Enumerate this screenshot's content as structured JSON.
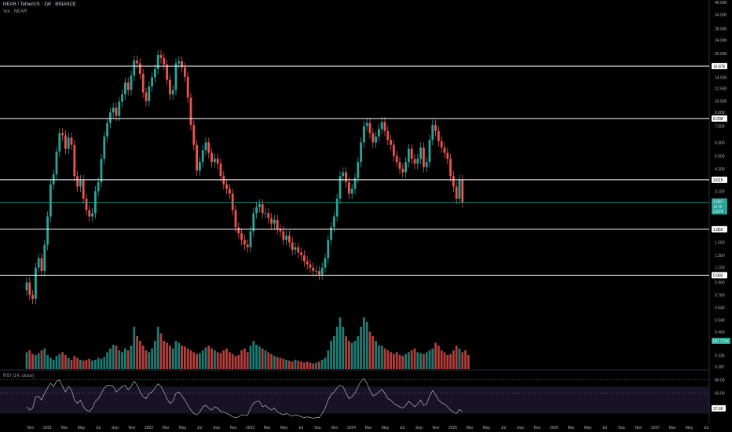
{
  "header": {
    "title": "NEAR / TetherUS · 1W · BINANCE",
    "vol_label": "Vol · NEAR"
  },
  "rsi_label": "RSI (14, close)",
  "colors": {
    "up": "#26a69a",
    "down": "#ef5350",
    "rsi": "#b2b5be",
    "price_line": "#26a69a",
    "hline": "#ffffff",
    "rsi_band": "#2a1e3f",
    "badge_current": "#26a69a",
    "badge_level": "#ffffff"
  },
  "chart_data": [
    {
      "type": "candlestick",
      "title": "NEAR / TetherUS · 1W · BINANCE",
      "scale": "log",
      "y_axis_ticks": [
        "40.000",
        "34.000",
        "28.000",
        "24.000",
        "20.000",
        "14.500",
        "12.500",
        "10.500",
        "9.000",
        "7.500",
        "6.000",
        "5.000",
        "4.200",
        "3.100",
        "2.500",
        "1.550",
        "1.300",
        "1.100",
        "0.900",
        "0.760",
        "0.640",
        "0.540",
        "0.460",
        "0.335",
        "0.287"
      ],
      "y_tick_values": [
        40,
        34,
        28,
        24,
        20,
        14.5,
        12.5,
        10.5,
        9,
        7.5,
        6,
        5,
        4.2,
        3.1,
        2.5,
        1.55,
        1.3,
        1.1,
        0.9,
        0.76,
        0.64,
        0.54,
        0.46,
        0.335,
        0.287
      ],
      "x_axis_ticks": [
        "Nov",
        "2021",
        "Mar",
        "May",
        "Jul",
        "Sep",
        "Nov",
        "2022",
        "Mar",
        "May",
        "Jul",
        "Sep",
        "Nov",
        "2023",
        "Mar",
        "May",
        "Jul",
        "Sep",
        "Nov",
        "2024",
        "Mar",
        "May",
        "Jul",
        "Sep",
        "Nov",
        "2025",
        "Mar",
        "May",
        "Jul",
        "Sep",
        "Nov",
        "2026",
        "Mar",
        "May",
        "Jul",
        "Sep",
        "Nov",
        "2027",
        "Mar",
        "May",
        "Jul"
      ],
      "x_range": [
        "2020-10",
        "2027-08"
      ],
      "horizontal_levels": [
        {
          "label": "16.876",
          "value": 16.876
        },
        {
          "label": "8.298",
          "value": 8.298
        },
        {
          "label": "3.615",
          "value": 3.615
        },
        {
          "label": "1.850",
          "value": 1.85
        },
        {
          "label": "0.993",
          "value": 0.993
        }
      ],
      "current_price": {
        "label": "2.667",
        "value": 2.667,
        "countdown": "1d 0h"
      },
      "prev_level_badge": "2.574",
      "volume_badge": "187.723K",
      "closes": [
        0.9,
        0.76,
        0.72,
        1.1,
        1.25,
        1.05,
        1.5,
        2.2,
        3.4,
        3.9,
        5.3,
        6.8,
        6.6,
        5.5,
        6.4,
        5.8,
        3.8,
        3.3,
        3.6,
        2.8,
        2.4,
        2.2,
        2.3,
        3.1,
        3.5,
        4.8,
        6.5,
        7.8,
        9.0,
        9.6,
        8.6,
        10.4,
        11.5,
        13.5,
        12.2,
        14.8,
        18.2,
        17.5,
        15.2,
        11.8,
        10.5,
        12.8,
        14.5,
        16.2,
        19.6,
        18.8,
        17.2,
        14.0,
        11.5,
        12.2,
        17.5,
        18.0,
        16.6,
        14.6,
        11.0,
        7.6,
        5.8,
        4.1,
        4.6,
        5.4,
        6.0,
        5.2,
        4.6,
        4.8,
        4.5,
        3.8,
        3.4,
        3.2,
        3.0,
        2.4,
        1.9,
        1.75,
        1.6,
        1.5,
        1.45,
        1.8,
        2.3,
        2.5,
        2.6,
        2.3,
        2.3,
        2.15,
        2.0,
        2.1,
        1.85,
        1.8,
        1.6,
        1.7,
        1.55,
        1.4,
        1.45,
        1.35,
        1.3,
        1.2,
        1.15,
        1.1,
        1.05,
        1.05,
        1.0,
        1.1,
        1.25,
        1.6,
        1.9,
        2.2,
        2.8,
        3.8,
        4.0,
        3.5,
        3.0,
        3.2,
        3.7,
        4.6,
        6.0,
        7.5,
        7.8,
        6.8,
        6.0,
        6.5,
        7.2,
        7.9,
        7.0,
        6.2,
        5.8,
        5.0,
        4.6,
        4.2,
        4.0,
        4.6,
        5.5,
        4.8,
        4.5,
        4.8,
        5.6,
        4.3,
        4.6,
        6.2,
        7.6,
        7.0,
        6.1,
        5.6,
        5.2,
        4.8,
        3.8,
        3.3,
        2.8,
        3.6,
        2.667
      ],
      "volume_scale": [
        0.18,
        0.2,
        0.16,
        0.15,
        0.17,
        0.2,
        0.22,
        0.15,
        0.12,
        0.1,
        0.14,
        0.16,
        0.18,
        0.15,
        0.12,
        0.1,
        0.14,
        0.12,
        0.1,
        0.09,
        0.1,
        0.11,
        0.09,
        0.1,
        0.12,
        0.11,
        0.13,
        0.18,
        0.22,
        0.26,
        0.25,
        0.2,
        0.18,
        0.22,
        0.2,
        0.25,
        0.45,
        0.35,
        0.3,
        0.25,
        0.2,
        0.18,
        0.22,
        0.3,
        0.45,
        0.38,
        0.3,
        0.28,
        0.25,
        0.22,
        0.3,
        0.28,
        0.25,
        0.24,
        0.22,
        0.2,
        0.18,
        0.16,
        0.17,
        0.2,
        0.23,
        0.25,
        0.22,
        0.2,
        0.18,
        0.17,
        0.2,
        0.22,
        0.18,
        0.16,
        0.14,
        0.15,
        0.2,
        0.22,
        0.18,
        0.25,
        0.3,
        0.26,
        0.24,
        0.22,
        0.2,
        0.18,
        0.16,
        0.14,
        0.13,
        0.12,
        0.11,
        0.1,
        0.09,
        0.08,
        0.1,
        0.09,
        0.08,
        0.07,
        0.08,
        0.07,
        0.06,
        0.07,
        0.08,
        0.1,
        0.12,
        0.2,
        0.3,
        0.35,
        0.45,
        0.55,
        0.45,
        0.35,
        0.3,
        0.28,
        0.3,
        0.35,
        0.45,
        0.55,
        0.5,
        0.4,
        0.35,
        0.3,
        0.25,
        0.25,
        0.22,
        0.2,
        0.18,
        0.16,
        0.18,
        0.15,
        0.14,
        0.16,
        0.18,
        0.2,
        0.22,
        0.18,
        0.17,
        0.16,
        0.18,
        0.2,
        0.22,
        0.28,
        0.25,
        0.2,
        0.18,
        0.15,
        0.16,
        0.2,
        0.25,
        0.22,
        0.18,
        0.2,
        0.15
      ],
      "rsi": {
        "levels": [
          80,
          60
        ],
        "band": [
          70,
          30
        ],
        "current": "37.66",
        "y_axis_ticks": [
          "80.00",
          "60.00"
        ],
        "values": [
          40,
          35,
          38,
          55,
          55,
          50,
          60,
          68,
          75,
          70,
          78,
          80,
          70,
          62,
          70,
          65,
          50,
          45,
          50,
          40,
          35,
          33,
          38,
          48,
          52,
          60,
          68,
          72,
          72,
          70,
          62,
          66,
          70,
          72,
          65,
          70,
          78,
          72,
          62,
          55,
          52,
          60,
          62,
          68,
          74,
          70,
          62,
          52,
          45,
          48,
          60,
          62,
          56,
          50,
          42,
          35,
          30,
          28,
          32,
          40,
          42,
          38,
          35,
          40,
          38,
          33,
          32,
          30,
          28,
          25,
          24,
          25,
          28,
          28,
          27,
          38,
          45,
          48,
          48,
          40,
          42,
          38,
          35,
          38,
          32,
          30,
          28,
          30,
          28,
          26,
          28,
          27,
          25,
          24,
          25,
          24,
          23,
          24,
          24,
          30,
          38,
          50,
          58,
          62,
          68,
          72,
          70,
          60,
          52,
          55,
          60,
          70,
          78,
          82,
          75,
          64,
          56,
          58,
          62,
          66,
          60,
          52,
          50,
          45,
          42,
          40,
          38,
          42,
          48,
          44,
          40,
          44,
          50,
          42,
          44,
          56,
          64,
          58,
          50,
          46,
          44,
          40,
          35,
          32,
          30,
          36,
          33
        ]
      }
    }
  ]
}
